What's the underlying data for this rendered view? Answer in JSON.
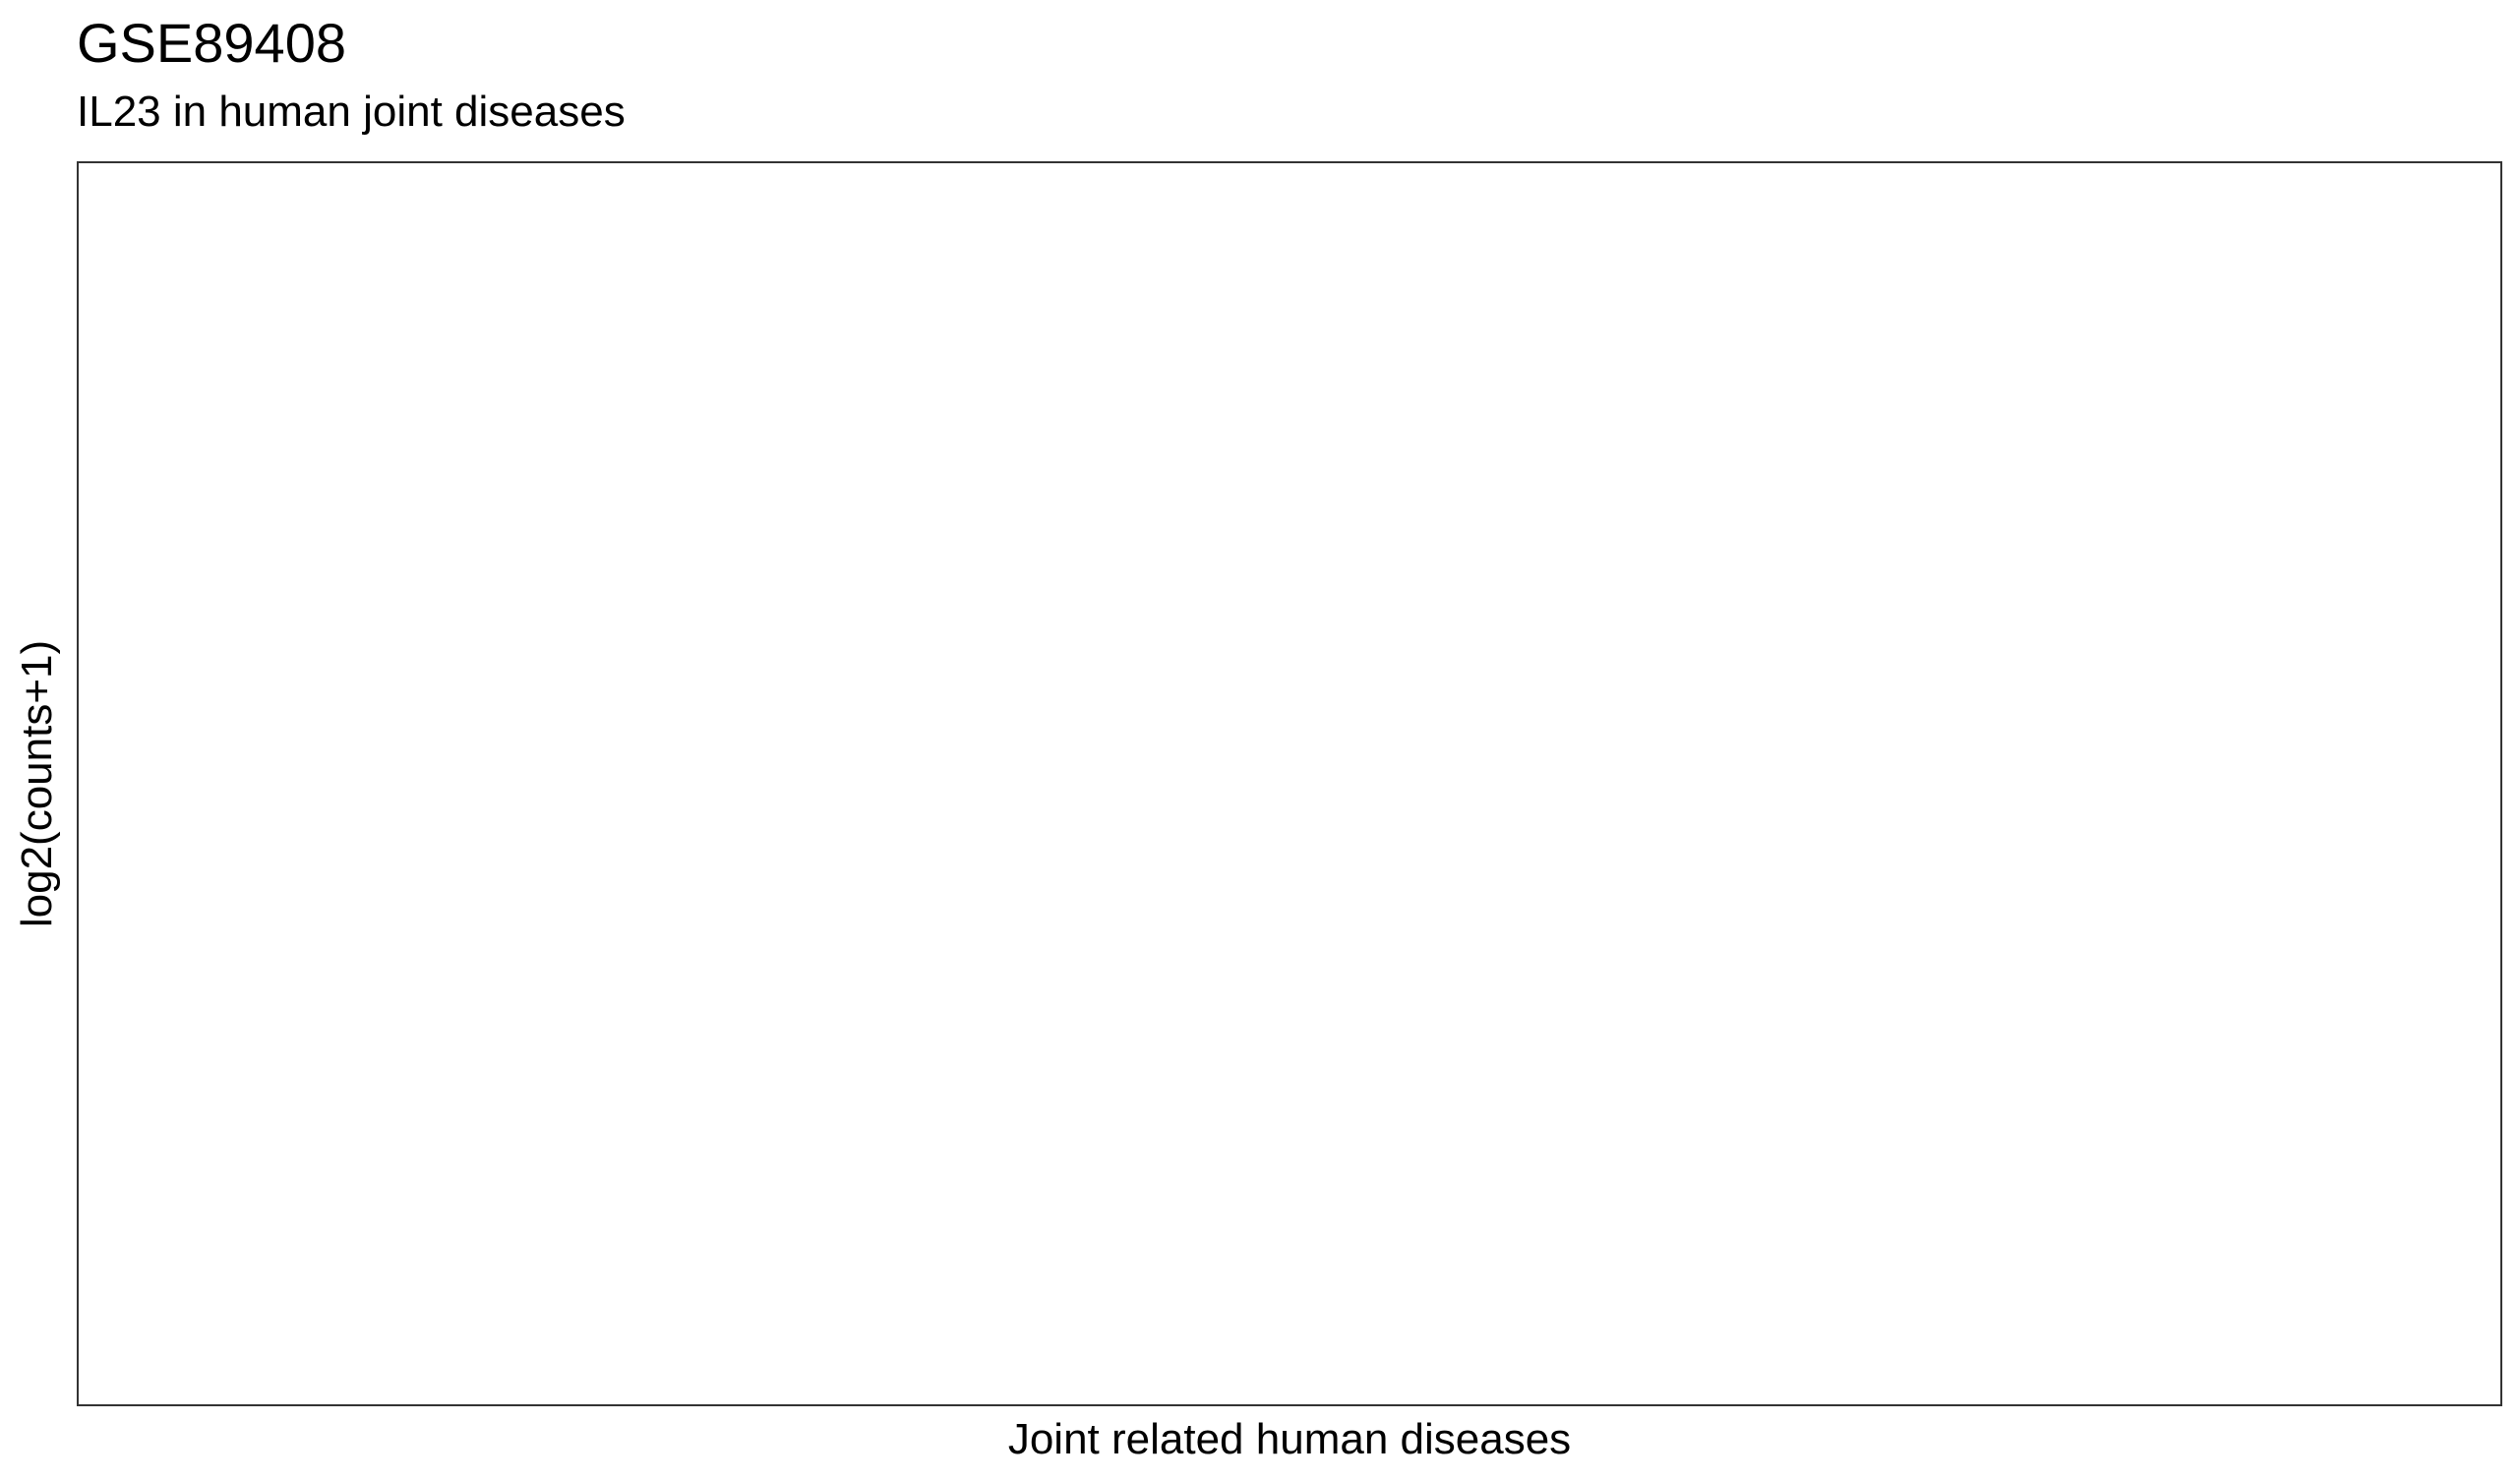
{
  "chart_data": {
    "type": "scatter",
    "title": "GSE89408",
    "subtitle": "IL23 in human joint diseases",
    "xlabel": "Joint related human diseases",
    "ylabel": "log2(counts+1)",
    "categories": [],
    "series": [],
    "grid": false,
    "panel_border_color": "#333333",
    "background": "#ffffff"
  }
}
